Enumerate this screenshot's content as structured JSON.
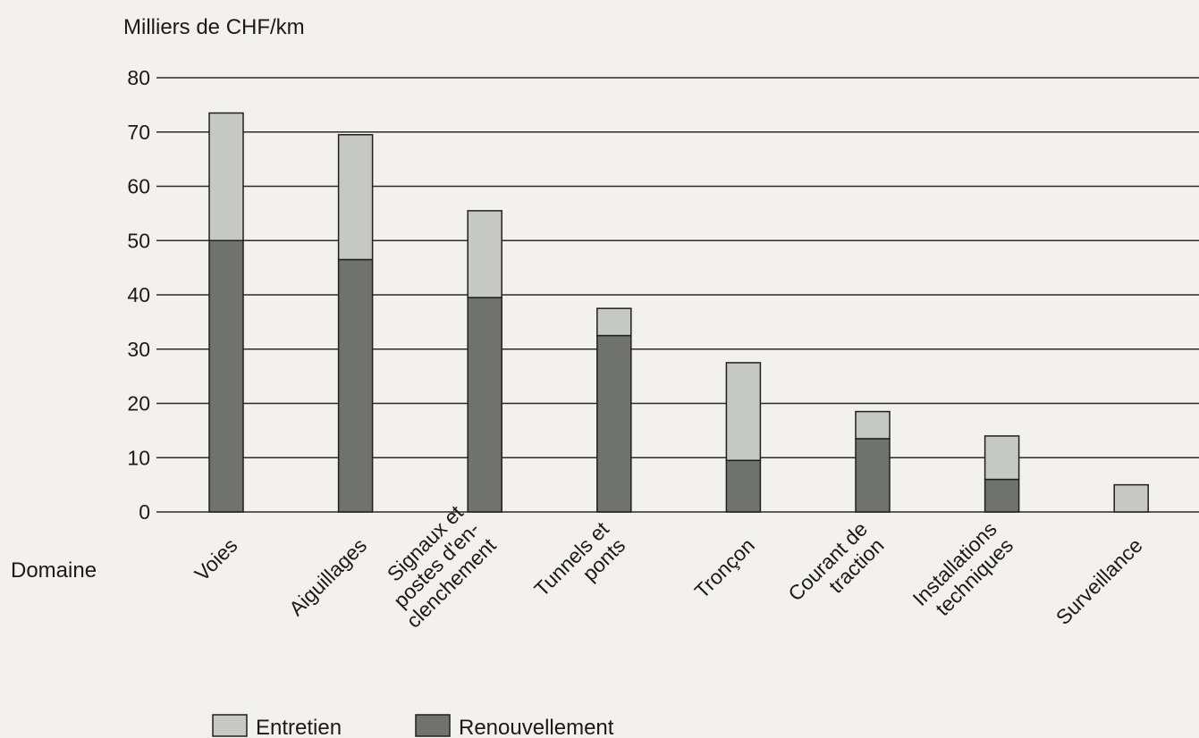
{
  "chart_data": {
    "type": "bar",
    "stacked": true,
    "ylabel": "Milliers de CHF/km",
    "xlabel": "Domaine",
    "ylim": [
      0,
      80
    ],
    "yticks": [
      0,
      10,
      20,
      30,
      40,
      50,
      60,
      70,
      80
    ],
    "grid": true,
    "legend_position": "bottom",
    "categories": [
      "Voies",
      "Aiguillages",
      "Signaux et postes d'en-clenchement",
      "Tunnels et ponts",
      "Tronçon",
      "Courant de traction",
      "Installations techniques",
      "Surveillance"
    ],
    "category_label_lines": [
      [
        "Voies"
      ],
      [
        "Aiguillages"
      ],
      [
        "Signaux et",
        "postes d'en-",
        "clenchement"
      ],
      [
        "Tunnels et",
        "ponts"
      ],
      [
        "Tronçon"
      ],
      [
        "Courant de",
        "traction"
      ],
      [
        "Installations",
        "techniques"
      ],
      [
        "Surveillance"
      ]
    ],
    "series": [
      {
        "name": "Renouvellement",
        "color": "#6f726e",
        "values": [
          50,
          46.5,
          39.5,
          32.5,
          9.5,
          13.5,
          6,
          0
        ]
      },
      {
        "name": "Entretien",
        "color": "#c6c8c5",
        "values": [
          23.5,
          23,
          16,
          5,
          18,
          5,
          8,
          5
        ]
      }
    ],
    "legend_order": [
      "Entretien",
      "Renouvellement"
    ]
  }
}
